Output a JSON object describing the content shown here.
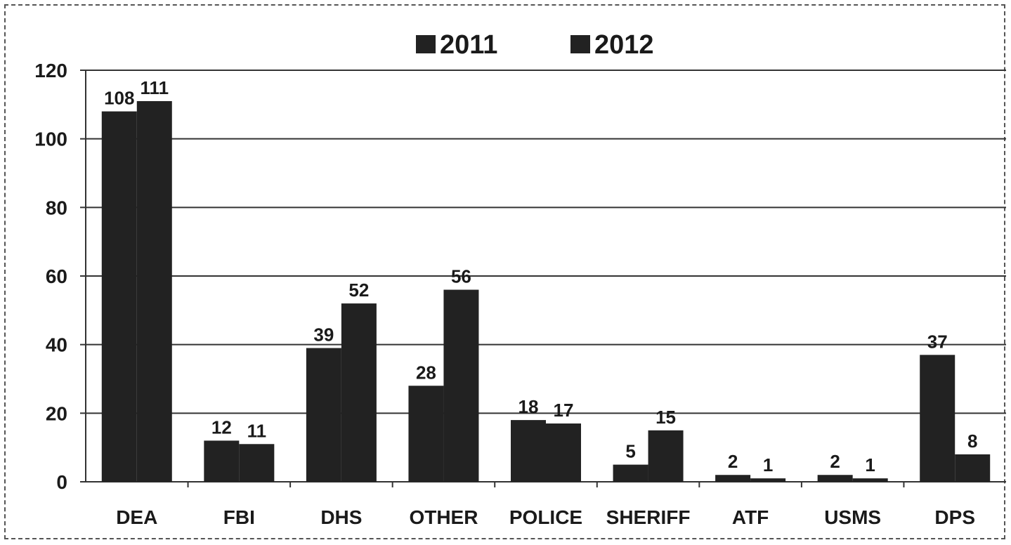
{
  "chart_data": {
    "type": "bar",
    "categories": [
      "DEA",
      "FBI",
      "DHS",
      "OTHER",
      "POLICE",
      "SHERIFF",
      "ATF",
      "USMS",
      "DPS"
    ],
    "series": [
      {
        "name": "2011",
        "values": [
          108,
          12,
          39,
          28,
          18,
          5,
          2,
          2,
          37
        ]
      },
      {
        "name": "2012",
        "values": [
          111,
          11,
          52,
          56,
          17,
          15,
          1,
          1,
          8
        ]
      }
    ],
    "value_labels": [
      [
        "108",
        "12",
        "39",
        "28",
        "18",
        "5",
        "2",
        "2",
        "37"
      ],
      [
        "111",
        "11",
        "52",
        "56",
        "17",
        "15",
        "1",
        "1",
        "8"
      ]
    ],
    "yticks": [
      "0",
      "20",
      "40",
      "60",
      "80",
      "100",
      "120"
    ],
    "ylim": [
      0,
      120
    ],
    "grid": true,
    "legend_position": "top-center",
    "colors": {
      "bar": "#222222",
      "grid": "#333333",
      "axis": "#333333"
    }
  }
}
